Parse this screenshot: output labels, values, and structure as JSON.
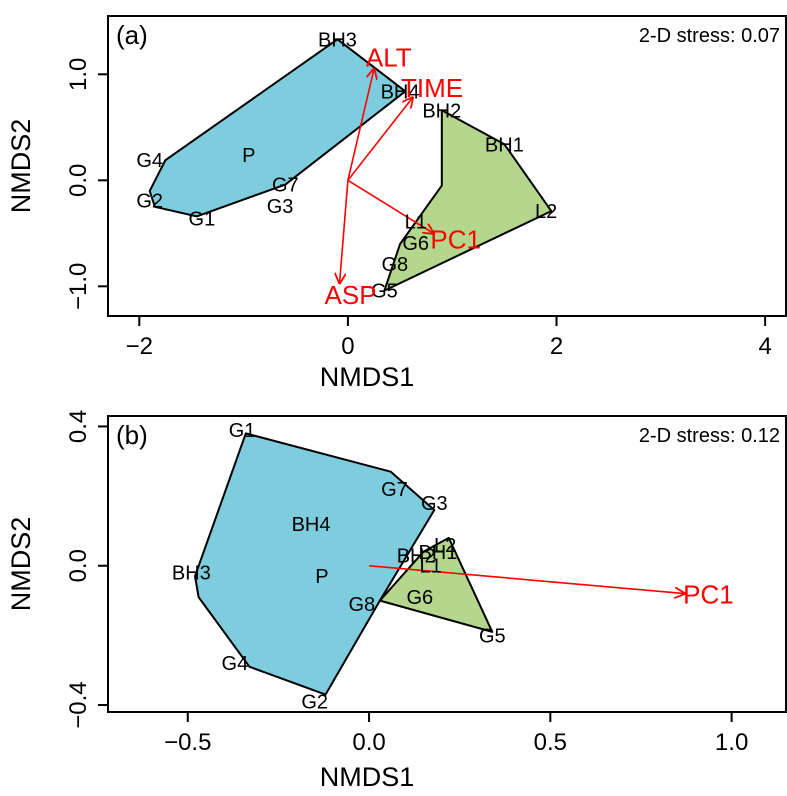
{
  "chart_data": [
    {
      "type": "scatter",
      "panel_label": "(a)",
      "stress_text": "2-D stress: 0.07",
      "xlabel": "NMDS1",
      "ylabel": "NMDS2",
      "xlim": [
        -2.3,
        4.2
      ],
      "ylim": [
        -1.28,
        1.55
      ],
      "xticks": [
        -2,
        0,
        2,
        4
      ],
      "yticks": [
        -1.0,
        0.0,
        1.0
      ],
      "ytick_labels": [
        "−1.0",
        "0.0",
        "1.0"
      ],
      "xtick_labels": [
        "−2",
        "0",
        "2",
        "4"
      ],
      "points": [
        {
          "label": "BH3",
          "x": -0.1,
          "y": 1.33
        },
        {
          "label": "BH4",
          "x": 0.5,
          "y": 0.84
        },
        {
          "label": "BH2",
          "x": 0.9,
          "y": 0.66
        },
        {
          "label": "BH1",
          "x": 1.5,
          "y": 0.34
        },
        {
          "label": "L2",
          "x": 1.9,
          "y": -0.29
        },
        {
          "label": "L1",
          "x": 0.65,
          "y": -0.39
        },
        {
          "label": "G6",
          "x": 0.65,
          "y": -0.59
        },
        {
          "label": "G8",
          "x": 0.45,
          "y": -0.79
        },
        {
          "label": "G5",
          "x": 0.35,
          "y": -1.04
        },
        {
          "label": "P",
          "x": -0.95,
          "y": 0.24
        },
        {
          "label": "G4",
          "x": -1.9,
          "y": 0.19
        },
        {
          "label": "G2",
          "x": -1.9,
          "y": -0.19
        },
        {
          "label": "G7",
          "x": -0.6,
          "y": -0.04
        },
        {
          "label": "G3",
          "x": -0.65,
          "y": -0.24
        },
        {
          "label": "G1",
          "x": -1.4,
          "y": -0.36
        }
      ],
      "hulls": [
        {
          "group": "blue",
          "fill": "#7ecdde",
          "x": [
            -0.1,
            0.55,
            -0.6,
            -1.45,
            -1.85,
            -1.9,
            -1.75
          ],
          "y": [
            1.33,
            0.84,
            -0.04,
            -0.34,
            -0.25,
            -0.1,
            0.19
          ]
        },
        {
          "group": "green",
          "fill": "#b5d68d",
          "x": [
            0.9,
            1.5,
            1.95,
            0.35,
            0.5,
            0.9
          ],
          "y": [
            0.66,
            0.34,
            -0.29,
            -1.04,
            -0.6,
            -0.05
          ]
        }
      ],
      "vectors": [
        {
          "label": "ALT",
          "x": 0.25,
          "y": 1.05
        },
        {
          "label": "TIME",
          "x": 0.62,
          "y": 0.78
        },
        {
          "label": "PC1",
          "x": 0.82,
          "y": -0.5
        },
        {
          "label": "ASP",
          "x": -0.08,
          "y": -0.97
        }
      ],
      "vector_color": "#ff0000"
    },
    {
      "type": "scatter",
      "panel_label": "(b)",
      "stress_text": "2-D stress: 0.12",
      "xlabel": "NMDS1",
      "ylabel": "NMDS2",
      "xlim": [
        -0.72,
        1.15
      ],
      "ylim": [
        -0.42,
        0.43
      ],
      "xticks": [
        -0.5,
        0.0,
        0.5,
        1.0
      ],
      "yticks": [
        -0.4,
        0.0,
        0.4
      ],
      "ytick_labels": [
        "−0.4",
        "0.0",
        "0.4"
      ],
      "xtick_labels": [
        "−0.5",
        "0.0",
        "0.5",
        "1.0"
      ],
      "points": [
        {
          "label": "G1",
          "x": -0.35,
          "y": 0.39
        },
        {
          "label": "G7",
          "x": 0.07,
          "y": 0.22
        },
        {
          "label": "G3",
          "x": 0.18,
          "y": 0.18
        },
        {
          "label": "BH4",
          "x": -0.16,
          "y": 0.12
        },
        {
          "label": "BH3",
          "x": -0.49,
          "y": -0.02
        },
        {
          "label": "P",
          "x": -0.13,
          "y": -0.03
        },
        {
          "label": "G8",
          "x": -0.02,
          "y": -0.11
        },
        {
          "label": "G6",
          "x": 0.14,
          "y": -0.09
        },
        {
          "label": "G5",
          "x": 0.34,
          "y": -0.2
        },
        {
          "label": "G4",
          "x": -0.37,
          "y": -0.28
        },
        {
          "label": "G2",
          "x": -0.15,
          "y": -0.39
        },
        {
          "label": "L2",
          "x": 0.21,
          "y": 0.06
        },
        {
          "label": "BH1",
          "x": 0.19,
          "y": 0.04
        },
        {
          "label": "BH2",
          "x": 0.13,
          "y": 0.03
        },
        {
          "label": "L1",
          "x": 0.17,
          "y": 0.0
        }
      ],
      "hulls": [
        {
          "group": "blue",
          "fill": "#7ecdde",
          "x": [
            -0.34,
            0.06,
            0.18,
            0.03,
            -0.12,
            -0.33,
            -0.47,
            -0.48
          ],
          "y": [
            0.38,
            0.27,
            0.16,
            -0.1,
            -0.37,
            -0.29,
            -0.09,
            -0.03
          ]
        },
        {
          "group": "green",
          "fill": "#b5d68d",
          "x": [
            0.22,
            0.34,
            0.03,
            0.15
          ],
          "y": [
            0.08,
            -0.19,
            -0.1,
            0.04
          ]
        }
      ],
      "vectors": [
        {
          "label": "PC1",
          "x": 0.87,
          "y": -0.08
        }
      ],
      "vector_color": "#ff0000"
    }
  ]
}
